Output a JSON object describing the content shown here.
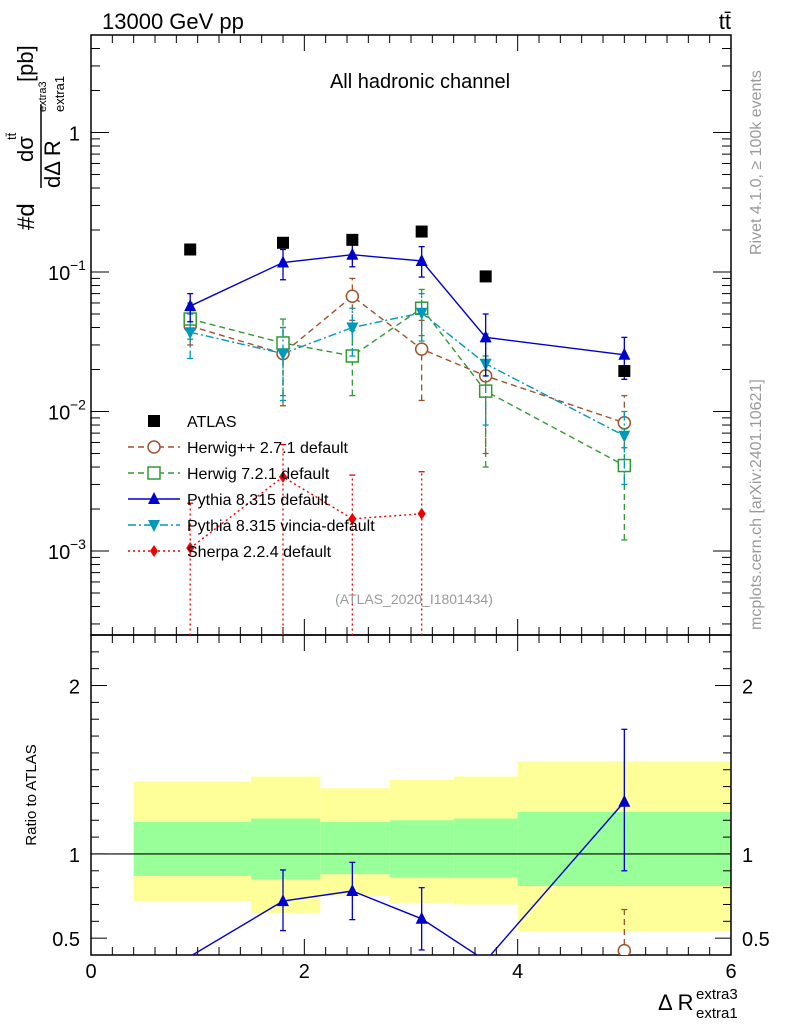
{
  "header": {
    "left_label": "13000 GeV pp",
    "right_label": "tt̄"
  },
  "side": {
    "rivet": "Rivet 4.1.0, ≥ 100k events",
    "mcplots": "mcplots.cern.ch [arXiv:2401.10621]"
  },
  "colors": {
    "atlas": "#000000",
    "herwigpp": "#a0522d",
    "herwig7": "#339933",
    "pythia": "#0000cc",
    "vincia": "#0099bb",
    "sherpa": "#ee0000",
    "band_green": "#99ff99",
    "band_yellow": "#ffff99"
  },
  "chart_data": [
    {
      "type": "scatter",
      "title": "All hadronic channel",
      "watermark": "(ATLAS_2020_I1801434)",
      "ylabel": {
        "prefix": "#d",
        "num": "dσ",
        "num_sup": "tt̄",
        "den": "dΔ R",
        "den_sub": "extra1",
        "den_sup": "extra3",
        "unit": "[pb]"
      },
      "yscale": "log",
      "ylim": [
        0.00025,
        5
      ],
      "xlim": [
        0,
        6
      ],
      "y_ticks": [
        {
          "value": 0.001,
          "base": "10",
          "exp": "−3"
        },
        {
          "value": 0.01,
          "base": "10",
          "exp": "−2"
        },
        {
          "value": 0.1,
          "base": "10",
          "exp": "−1"
        },
        {
          "value": 1,
          "base": "1",
          "exp": ""
        }
      ],
      "legend": {
        "position": "bottom-left",
        "entries": [
          {
            "key": "atlas",
            "label": "ATLAS"
          },
          {
            "key": "herwigpp",
            "label": "Herwig++ 2.7.1 default"
          },
          {
            "key": "herwig7",
            "label": "Herwig 7.2.1 default"
          },
          {
            "key": "pythia",
            "label": "Pythia 8.315 default"
          },
          {
            "key": "vincia",
            "label": "Pythia 8.315 vincia-default"
          },
          {
            "key": "sherpa",
            "label": "Sherpa 2.2.4 default"
          }
        ]
      },
      "series": [
        {
          "key": "atlas",
          "name": "ATLAS",
          "marker": "square",
          "line": "none",
          "x": [
            0.93,
            1.8,
            2.45,
            3.1,
            3.7,
            5.0
          ],
          "y": [
            0.145,
            0.162,
            0.17,
            0.195,
            0.093,
            0.0195
          ]
        },
        {
          "key": "herwigpp",
          "name": "Herwig++ 2.7.1 default",
          "marker": "open-circle",
          "line": "dashed",
          "x": [
            0.93,
            1.8,
            2.45,
            3.1,
            3.7,
            5.0
          ],
          "y": [
            0.041,
            0.026,
            0.067,
            0.028,
            0.018,
            0.0083
          ],
          "ylo": [
            0.03,
            0.011,
            0.045,
            0.012,
            0.005,
            0.0055
          ],
          "yhi": [
            0.055,
            0.04,
            0.09,
            0.045,
            0.032,
            0.013
          ]
        },
        {
          "key": "herwig7",
          "name": "Herwig 7.2.1 default",
          "marker": "open-square",
          "line": "dashed",
          "x": [
            0.93,
            1.8,
            2.45,
            3.1,
            3.7,
            5.0
          ],
          "y": [
            0.046,
            0.031,
            0.025,
            0.055,
            0.014,
            0.0041
          ],
          "ylo": [
            0.033,
            0.013,
            0.013,
            0.035,
            0.004,
            0.0012
          ],
          "yhi": [
            0.06,
            0.046,
            0.038,
            0.075,
            0.025,
            0.0075
          ]
        },
        {
          "key": "pythia",
          "name": "Pythia 8.315 default",
          "marker": "triangle-up",
          "line": "solid",
          "x": [
            0.93,
            1.8,
            2.45,
            3.1,
            3.7,
            5.0
          ],
          "y": [
            0.057,
            0.117,
            0.133,
            0.12,
            0.034,
            0.0255
          ],
          "ylo": [
            0.044,
            0.088,
            0.109,
            0.092,
            0.018,
            0.017
          ],
          "yhi": [
            0.07,
            0.145,
            0.16,
            0.152,
            0.05,
            0.034
          ]
        },
        {
          "key": "vincia",
          "name": "Pythia 8.315 vincia-default",
          "marker": "triangle-down",
          "line": "dashdot",
          "x": [
            0.93,
            1.8,
            2.45,
            3.1,
            3.7,
            5.0
          ],
          "y": [
            0.037,
            0.026,
            0.04,
            0.051,
            0.022,
            0.0067
          ],
          "ylo": [
            0.024,
            0.012,
            0.025,
            0.032,
            0.008,
            0.003
          ],
          "yhi": [
            0.05,
            0.04,
            0.055,
            0.07,
            0.036,
            0.01
          ]
        },
        {
          "key": "sherpa",
          "name": "Sherpa 2.2.4 default",
          "marker": "diamond",
          "line": "dotted",
          "x": [
            0.93,
            1.8,
            2.45,
            3.1
          ],
          "y": [
            0.00105,
            0.0034,
            0.0017,
            0.00185
          ],
          "ylo": [
            0.0001,
            0.0001,
            0.0001,
            0.0001
          ],
          "yhi": [
            0.0022,
            0.0058,
            0.0035,
            0.0037
          ]
        }
      ]
    },
    {
      "type": "scatter",
      "ylabel": "Ratio to ATLAS",
      "xlabel": {
        "main": "Δ R",
        "sub": "extra1",
        "sup": "extra3"
      },
      "xlim": [
        0,
        6
      ],
      "ylim": [
        0.4,
        2.3
      ],
      "x_ticks": [
        0,
        2,
        4,
        6
      ],
      "y_ticks": [
        0.5,
        1,
        2
      ],
      "reference_line": 1,
      "bands": [
        {
          "xlo": 0.4,
          "xhi": 1.5,
          "green": [
            0.87,
            1.19
          ],
          "yellow": [
            0.72,
            1.43
          ]
        },
        {
          "xlo": 1.5,
          "xhi": 2.15,
          "green": [
            0.85,
            1.21
          ],
          "yellow": [
            0.65,
            1.46
          ]
        },
        {
          "xlo": 2.15,
          "xhi": 2.8,
          "green": [
            0.88,
            1.19
          ],
          "yellow": [
            0.75,
            1.39
          ]
        },
        {
          "xlo": 2.8,
          "xhi": 3.4,
          "green": [
            0.86,
            1.2
          ],
          "yellow": [
            0.71,
            1.44
          ]
        },
        {
          "xlo": 3.4,
          "xhi": 4.0,
          "green": [
            0.86,
            1.21
          ],
          "yellow": [
            0.7,
            1.46
          ]
        },
        {
          "xlo": 4.0,
          "xhi": 6.0,
          "green": [
            0.81,
            1.25
          ],
          "yellow": [
            0.54,
            1.55
          ]
        }
      ],
      "series": [
        {
          "key": "pythia",
          "name": "Pythia 8.315 default",
          "marker": "triangle-up",
          "line": "solid",
          "x": [
            0.93,
            1.8,
            2.45,
            3.1,
            3.7,
            5.0
          ],
          "y": [
            0.392,
            0.72,
            0.78,
            0.615,
            0.366,
            1.31
          ],
          "ylo": [
            null,
            0.545,
            0.61,
            0.43,
            null,
            0.9
          ],
          "yhi": [
            null,
            0.905,
            0.95,
            0.8,
            null,
            1.74
          ],
          "markers": [
            false,
            true,
            true,
            true,
            false,
            true
          ]
        },
        {
          "key": "herwigpp",
          "name": "Herwig++ 2.7.1 default",
          "marker": "open-circle",
          "line": "dashed",
          "x": [
            5.0
          ],
          "y": [
            0.426
          ],
          "ylo": [
            0.4
          ],
          "yhi": [
            0.67
          ],
          "markers": [
            true
          ]
        }
      ]
    }
  ]
}
